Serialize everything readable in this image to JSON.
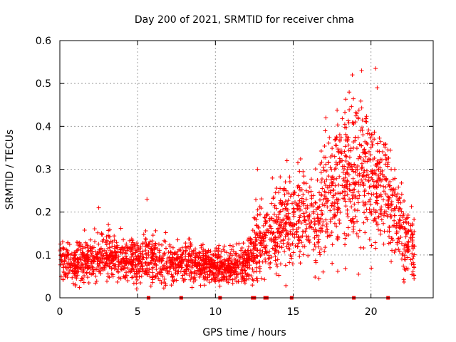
{
  "chart_data": {
    "type": "scatter",
    "title": "Day 200 of 2021, SRMTID for receiver chma",
    "xlabel": "GPS time / hours",
    "ylabel": "SRMTID / TECUs",
    "xlim": [
      0,
      24
    ],
    "ylim": [
      0,
      0.6
    ],
    "x_ticks": [
      0,
      5,
      10,
      15,
      20
    ],
    "x_tick_labels": [
      "0",
      "5",
      "10",
      "15",
      "20"
    ],
    "y_ticks": [
      0,
      0.1,
      0.2,
      0.3,
      0.4,
      0.5,
      0.6
    ],
    "y_tick_labels": [
      "0",
      "0.1",
      "0.2",
      "0.3",
      "0.4",
      "0.5",
      "0.6"
    ],
    "grid": true,
    "marker": "plus",
    "color": "#ff0000",
    "data_end_hour": 22.8,
    "profile_hours": [
      0,
      1,
      2,
      3,
      4,
      5,
      6,
      7,
      8,
      9,
      10,
      11,
      12,
      12.5,
      13,
      14,
      15,
      16,
      17,
      18,
      19,
      20,
      21,
      22,
      22.8
    ],
    "profile_mean": [
      0.085,
      0.08,
      0.09,
      0.095,
      0.09,
      0.09,
      0.085,
      0.08,
      0.08,
      0.075,
      0.07,
      0.075,
      0.08,
      0.12,
      0.14,
      0.16,
      0.19,
      0.17,
      0.21,
      0.27,
      0.3,
      0.28,
      0.25,
      0.16,
      0.11
    ],
    "profile_spread": [
      0.03,
      0.03,
      0.035,
      0.035,
      0.035,
      0.035,
      0.035,
      0.03,
      0.03,
      0.025,
      0.025,
      0.025,
      0.03,
      0.05,
      0.06,
      0.06,
      0.07,
      0.07,
      0.09,
      0.1,
      0.11,
      0.1,
      0.09,
      0.06,
      0.04
    ],
    "peak_points": [
      {
        "x": 18.8,
        "y": 0.52
      },
      {
        "x": 19.4,
        "y": 0.53
      },
      {
        "x": 20.3,
        "y": 0.535
      },
      {
        "x": 20.4,
        "y": 0.49
      },
      {
        "x": 18.6,
        "y": 0.48
      },
      {
        "x": 17.1,
        "y": 0.42
      },
      {
        "x": 15.3,
        "y": 0.315
      },
      {
        "x": 14.6,
        "y": 0.32
      },
      {
        "x": 12.7,
        "y": 0.3
      },
      {
        "x": 5.6,
        "y": 0.23
      },
      {
        "x": 2.5,
        "y": 0.21
      },
      {
        "x": 19.2,
        "y": 0.055
      },
      {
        "x": 21.3,
        "y": 0.3
      }
    ],
    "gap_markers": [
      5.7,
      7.8,
      10.3,
      12.4,
      12.5,
      13.2,
      13.3,
      14.9,
      18.9,
      21.1
    ]
  }
}
